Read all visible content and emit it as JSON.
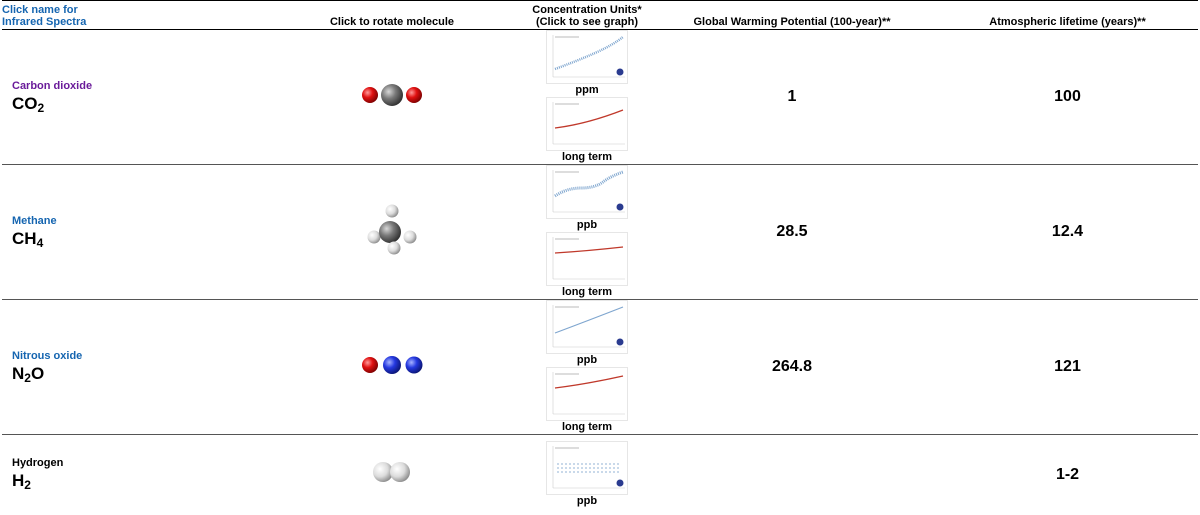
{
  "header": {
    "col1_line1": "Click name for",
    "col1_line2": "Infrared Spectra",
    "col2": "Click to rotate molecule",
    "col3_line1": "Concentration Units*",
    "col3_line2": "(Click to see graph)",
    "col4": "Global Warming Potential (100-year)**",
    "col5": "Atmospheric lifetime (years)**"
  },
  "colors": {
    "link_blue": "#1565b0",
    "visited_purple": "#6a1b9a",
    "oxygen_red": "#d81818",
    "carbon_grey": "#6e6e6e",
    "nitrogen_blue": "#2a3bd6",
    "hydrogen_white": "#e8e8e8",
    "trend_red": "#c0392b",
    "data_blue": "#7fa6cf",
    "marker_navy": "#2a3b8f"
  },
  "gases": [
    {
      "name": "Carbon dioxide",
      "formula": "CO",
      "subscript": "2",
      "formula_tail": "",
      "molecule_icon": "co2-molecule",
      "unit": "ppm",
      "long_label": "long term",
      "gwp": "1",
      "lifetime": "100"
    },
    {
      "name": "Methane",
      "formula": "CH",
      "subscript": "4",
      "formula_tail": "",
      "molecule_icon": "ch4-molecule",
      "unit": "ppb",
      "long_label": "long term",
      "gwp": "28.5",
      "lifetime": "12.4"
    },
    {
      "name": "Nitrous oxide",
      "formula": "N",
      "subscript": "2",
      "formula_tail": "O",
      "molecule_icon": "n2o-molecule",
      "unit": "ppb",
      "long_label": "long term",
      "gwp": "264.8",
      "lifetime": "121"
    },
    {
      "name": "Hydrogen",
      "formula": "H",
      "subscript": "2",
      "formula_tail": "",
      "molecule_icon": "h2-molecule",
      "unit": "ppb",
      "gwp": "",
      "lifetime": "1-2"
    }
  ]
}
